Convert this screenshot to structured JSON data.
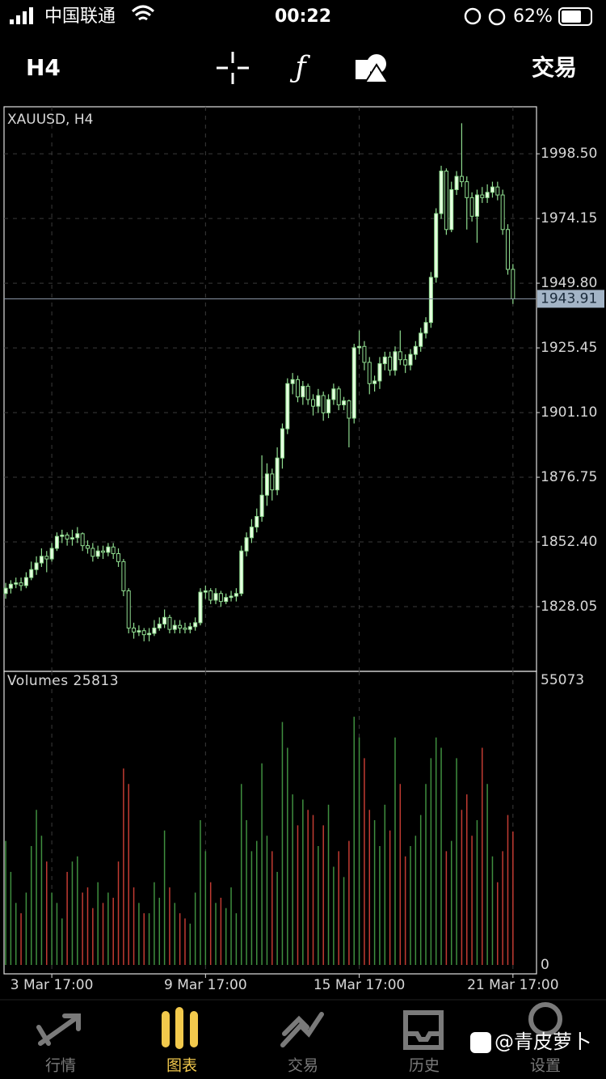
{
  "status_bar": {
    "carrier": "中国联通",
    "time": "00:22",
    "battery": "62%"
  },
  "toolbar": {
    "timeframe": "H4",
    "trade": "交易"
  },
  "chart_data": {
    "type": "candlestick",
    "title": "XAUUSD, H4",
    "xlim": [
      -0.32,
      103.6
    ],
    "xticks": [
      {
        "value": 9,
        "label": "3 Mar 17:00"
      },
      {
        "value": 39,
        "label": "9 Mar 17:00"
      },
      {
        "value": 69,
        "label": "15 Mar 17:00"
      },
      {
        "value": 99,
        "label": "21 Mar 17:00"
      }
    ],
    "ylim": [
      1803.7,
      2016.2
    ],
    "yticks": [
      {
        "value": 1828.05,
        "label": "1828.05"
      },
      {
        "value": 1852.4,
        "label": "1852.40"
      },
      1876.75,
      {
        "value": 1901.1,
        "label": "1901.10"
      },
      1925.45,
      {
        "value": 1949.8,
        "label": "1949.80"
      },
      1974.15,
      {
        "value": 1998.5,
        "label": "1998.50"
      }
    ],
    "grid": true,
    "current_price": 1943.91,
    "up_color": "#e6ffe0",
    "down_color": "#000000",
    "wick_color": "#8fdc8f",
    "candles": {
      "open": [
        1833.0,
        1835.0,
        1836.5,
        1837.0,
        1836.0,
        1839.0,
        1842.0,
        1844.5,
        1847.0,
        1846.0,
        1850.0,
        1854.5,
        1855.0,
        1853.5,
        1854.0,
        1855.5,
        1851.0,
        1850.0,
        1847.0,
        1849.0,
        1848.5,
        1850.5,
        1848.0,
        1845.0,
        1834.0,
        1820.0,
        1818.5,
        1819.0,
        1817.5,
        1818.0,
        1820.0,
        1821.5,
        1824.0,
        1819.5,
        1821.0,
        1820.0,
        1819.5,
        1820.5,
        1822.0,
        1833.5,
        1834.0,
        1830.5,
        1833.0,
        1830.0,
        1831.5,
        1832.0,
        1833.0,
        1849.0,
        1854.0,
        1858.0,
        1862.0,
        1870.0,
        1878.0,
        1872.0,
        1884.0,
        1895.0,
        1912.0,
        1913.5,
        1907.0,
        1911.0,
        1906.0,
        1903.5,
        1907.5,
        1901.0,
        1906.0,
        1910.0,
        1904.0,
        1905.5,
        1899.0,
        1925.5,
        1926.0,
        1920.0,
        1912.0,
        1913.0,
        1919.5,
        1922.0,
        1917.0,
        1924.0,
        1921.0,
        1919.0,
        1923.0,
        1926.0,
        1931.0,
        1935.0,
        1952.0,
        1976.0,
        1992.0,
        1970.0,
        1985.0,
        1990.0,
        1988.0,
        1982.0,
        1975.0,
        1983.0,
        1982.0,
        1984.0,
        1986.0,
        1983.0,
        1970.0,
        1955.0
      ],
      "high": [
        1837,
        1838,
        1839,
        1839,
        1841,
        1845,
        1847,
        1850,
        1849,
        1852,
        1856,
        1857,
        1856,
        1857,
        1858,
        1856,
        1853,
        1852,
        1851,
        1851,
        1852,
        1852,
        1850,
        1846,
        1835,
        1822,
        1821,
        1820,
        1820,
        1823,
        1824,
        1827,
        1825,
        1823,
        1823,
        1822,
        1822,
        1824,
        1835,
        1836,
        1835,
        1835,
        1834,
        1833,
        1834,
        1835,
        1851,
        1856,
        1861,
        1865,
        1885,
        1882,
        1880,
        1888,
        1897,
        1914,
        1916,
        1915,
        1913,
        1912,
        1908,
        1910,
        1909,
        1908,
        1912,
        1911,
        1907,
        1906,
        1927,
        1932,
        1928,
        1922,
        1915,
        1922,
        1924,
        1924,
        1926,
        1932,
        1923,
        1925,
        1928,
        1933,
        1937,
        1954,
        1978,
        1994,
        1993,
        1988,
        1992,
        2010,
        1990,
        1984,
        1985,
        1986,
        1987,
        1988,
        1988,
        1985,
        1972,
        1957
      ],
      "low": [
        1831,
        1833,
        1835,
        1834,
        1835,
        1838,
        1840,
        1843,
        1841,
        1845,
        1849,
        1852,
        1851,
        1851,
        1852,
        1849,
        1848,
        1845,
        1846,
        1846,
        1847,
        1846,
        1843,
        1832,
        1818,
        1816,
        1817,
        1815,
        1815,
        1817,
        1819,
        1820,
        1818,
        1818,
        1818,
        1818,
        1818,
        1819,
        1821,
        1831,
        1829,
        1829,
        1828,
        1829,
        1830,
        1830,
        1832,
        1847,
        1852,
        1856,
        1860,
        1866,
        1868,
        1870,
        1880,
        1893,
        1908,
        1905,
        1904,
        1904,
        1900,
        1901,
        1898,
        1899,
        1904,
        1902,
        1902,
        1888,
        1897,
        1923,
        1917,
        1908,
        1909,
        1910,
        1917,
        1915,
        1915,
        1919,
        1916,
        1917,
        1921,
        1924,
        1929,
        1933,
        1950,
        1974,
        1968,
        1969,
        1983,
        1986,
        1970,
        1973,
        1965,
        1980,
        1980,
        1982,
        1981,
        1968,
        1953,
        1942
      ],
      "close": [
        1835.0,
        1836.5,
        1837.0,
        1836.0,
        1839.0,
        1842.0,
        1844.5,
        1847.0,
        1846.0,
        1850.0,
        1854.5,
        1855.0,
        1853.5,
        1854.0,
        1855.5,
        1851.0,
        1850.0,
        1847.0,
        1849.0,
        1848.5,
        1850.5,
        1848.0,
        1845.0,
        1834.0,
        1820.0,
        1818.5,
        1819.0,
        1817.5,
        1818.0,
        1820.0,
        1821.5,
        1824.0,
        1819.5,
        1821.0,
        1820.0,
        1819.5,
        1820.5,
        1822.0,
        1833.5,
        1834.0,
        1830.5,
        1833.0,
        1830.0,
        1831.5,
        1832.0,
        1833.0,
        1849.0,
        1854.0,
        1858.0,
        1862.0,
        1870.0,
        1878.0,
        1872.0,
        1884.0,
        1895.0,
        1912.0,
        1913.5,
        1907.0,
        1911.0,
        1906.0,
        1903.5,
        1907.5,
        1901.0,
        1906.0,
        1910.0,
        1904.0,
        1905.5,
        1899.0,
        1925.5,
        1926.0,
        1920.0,
        1912.0,
        1913.0,
        1919.5,
        1922.0,
        1917.0,
        1924.0,
        1921.0,
        1919.0,
        1923.0,
        1926.0,
        1931.0,
        1935.0,
        1952.0,
        1976.0,
        1992.0,
        1970.0,
        1985.0,
        1990.0,
        1988.0,
        1982.0,
        1975.0,
        1983.0,
        1982.0,
        1984.0,
        1986.0,
        1983.0,
        1970.0,
        1955.0,
        1943.91
      ]
    },
    "volume": {
      "label": "Volumes 25813",
      "ylim": [
        -1720,
        56790
      ],
      "yticks": [
        0,
        55073
      ],
      "up_color": "#3f8f3f",
      "down_color": "#c23b32",
      "values": [
        24000,
        18000,
        12000,
        10000,
        14000,
        23000,
        30000,
        25000,
        20000,
        14000,
        12000,
        9000,
        18000,
        20000,
        21000,
        14000,
        15000,
        11000,
        16000,
        12000,
        14000,
        13000,
        20000,
        38000,
        35000,
        15000,
        12000,
        10000,
        10000,
        16000,
        13000,
        26000,
        15000,
        12000,
        10000,
        9000,
        8000,
        14000,
        28000,
        22000,
        16000,
        12000,
        13000,
        11000,
        15000,
        10000,
        35000,
        28000,
        22000,
        24000,
        39000,
        25000,
        22000,
        18000,
        47000,
        42000,
        33000,
        27000,
        32000,
        30000,
        29000,
        23000,
        27000,
        31000,
        19000,
        22000,
        17000,
        24000,
        48000,
        44000,
        40000,
        30000,
        28000,
        23000,
        31000,
        26000,
        44000,
        35000,
        21000,
        23000,
        25000,
        29000,
        35000,
        40000,
        44000,
        42000,
        22000,
        24000,
        40000,
        30000,
        33000,
        25000,
        28000,
        42000,
        35000,
        21000,
        16000,
        22000,
        29000,
        25813
      ]
    }
  },
  "tabs": [
    {
      "label": "行情"
    },
    {
      "label": "图表"
    },
    {
      "label": "交易"
    },
    {
      "label": "历史"
    },
    {
      "label": "设置"
    }
  ],
  "active_tab": 1,
  "watermark": "@青皮萝卜"
}
